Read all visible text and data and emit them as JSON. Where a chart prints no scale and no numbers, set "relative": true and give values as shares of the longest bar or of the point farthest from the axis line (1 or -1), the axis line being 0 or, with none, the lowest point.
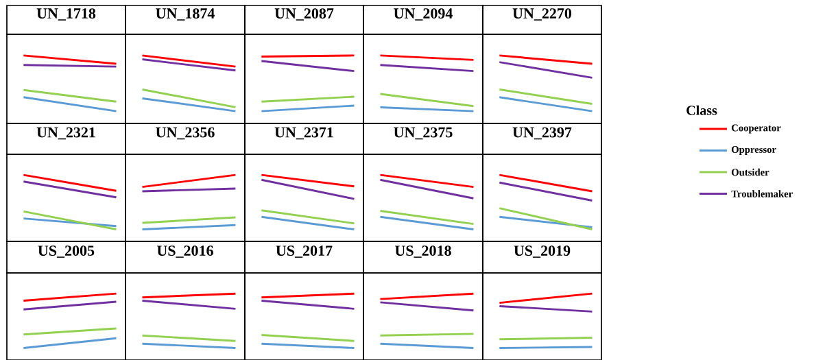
{
  "chart_data": [
    {
      "type": "line",
      "title": "UN_1718",
      "relative": true,
      "categories": [
        null,
        null
      ],
      "series": [
        {
          "color": "#ff0000",
          "values": [
            1,
            0.85
          ]
        },
        {
          "color": "#5b9bd5",
          "values": [
            0.25,
            0
          ]
        },
        {
          "color": "#92d050",
          "values": [
            0.38,
            0.17
          ]
        },
        {
          "color": "#7030a0",
          "values": [
            0.83,
            0.8
          ]
        }
      ]
    },
    {
      "type": "line",
      "title": "UN_1874",
      "relative": true,
      "categories": [
        null,
        null
      ],
      "series": [
        {
          "color": "#ff0000",
          "values": [
            1,
            0.8
          ]
        },
        {
          "color": "#5b9bd5",
          "values": [
            0.23,
            0
          ]
        },
        {
          "color": "#92d050",
          "values": [
            0.39,
            0.07
          ]
        },
        {
          "color": "#7030a0",
          "values": [
            0.93,
            0.73
          ]
        }
      ]
    },
    {
      "type": "line",
      "title": "UN_2087",
      "relative": true,
      "categories": [
        null,
        null
      ],
      "series": [
        {
          "color": "#ff0000",
          "values": [
            0.98,
            1
          ]
        },
        {
          "color": "#5b9bd5",
          "values": [
            0,
            0.1
          ]
        },
        {
          "color": "#92d050",
          "values": [
            0.17,
            0.26
          ]
        },
        {
          "color": "#7030a0",
          "values": [
            0.9,
            0.72
          ]
        }
      ]
    },
    {
      "type": "line",
      "title": "UN_2094",
      "relative": true,
      "categories": [
        null,
        null
      ],
      "series": [
        {
          "color": "#ff0000",
          "values": [
            1,
            0.92
          ]
        },
        {
          "color": "#5b9bd5",
          "values": [
            0.07,
            0
          ]
        },
        {
          "color": "#92d050",
          "values": [
            0.31,
            0.09
          ]
        },
        {
          "color": "#7030a0",
          "values": [
            0.83,
            0.72
          ]
        }
      ]
    },
    {
      "type": "line",
      "title": "UN_2270",
      "relative": true,
      "categories": [
        null,
        null
      ],
      "series": [
        {
          "color": "#ff0000",
          "values": [
            1,
            0.85
          ]
        },
        {
          "color": "#5b9bd5",
          "values": [
            0.25,
            0
          ]
        },
        {
          "color": "#92d050",
          "values": [
            0.39,
            0.13
          ]
        },
        {
          "color": "#7030a0",
          "values": [
            0.88,
            0.6
          ]
        }
      ]
    },
    {
      "type": "line",
      "title": "UN_2321",
      "relative": true,
      "categories": [
        null,
        null
      ],
      "series": [
        {
          "color": "#ff0000",
          "values": [
            1,
            0.71
          ]
        },
        {
          "color": "#5b9bd5",
          "values": [
            0.2,
            0.06
          ]
        },
        {
          "color": "#92d050",
          "values": [
            0.33,
            0
          ]
        },
        {
          "color": "#7030a0",
          "values": [
            0.88,
            0.59
          ]
        }
      ]
    },
    {
      "type": "line",
      "title": "UN_2356",
      "relative": true,
      "categories": [
        null,
        null
      ],
      "series": [
        {
          "color": "#ff0000",
          "values": [
            0.78,
            1
          ]
        },
        {
          "color": "#5b9bd5",
          "values": [
            0,
            0.08
          ]
        },
        {
          "color": "#92d050",
          "values": [
            0.12,
            0.22
          ]
        },
        {
          "color": "#7030a0",
          "values": [
            0.7,
            0.75
          ]
        }
      ]
    },
    {
      "type": "line",
      "title": "UN_2371",
      "relative": true,
      "categories": [
        null,
        null
      ],
      "series": [
        {
          "color": "#ff0000",
          "values": [
            1,
            0.79
          ]
        },
        {
          "color": "#5b9bd5",
          "values": [
            0.23,
            0
          ]
        },
        {
          "color": "#92d050",
          "values": [
            0.35,
            0.11
          ]
        },
        {
          "color": "#7030a0",
          "values": [
            0.91,
            0.56
          ]
        }
      ]
    },
    {
      "type": "line",
      "title": "UN_2375",
      "relative": true,
      "categories": [
        null,
        null
      ],
      "series": [
        {
          "color": "#ff0000",
          "values": [
            1,
            0.78
          ]
        },
        {
          "color": "#5b9bd5",
          "values": [
            0.23,
            0
          ]
        },
        {
          "color": "#92d050",
          "values": [
            0.34,
            0.1
          ]
        },
        {
          "color": "#7030a0",
          "values": [
            0.91,
            0.57
          ]
        }
      ]
    },
    {
      "type": "line",
      "title": "UN_2397",
      "relative": true,
      "categories": [
        null,
        null
      ],
      "legend": "right",
      "legend_title": "Class",
      "series": [
        {
          "name": "Cooperator",
          "color": "#ff0000",
          "values": [
            1,
            0.7
          ]
        },
        {
          "name": "Oppressor",
          "color": "#5b9bd5",
          "values": [
            0.23,
            0.04
          ]
        },
        {
          "name": "Outsider",
          "color": "#92d050",
          "values": [
            0.39,
            0
          ]
        },
        {
          "name": "Troublemaker",
          "color": "#7030a0",
          "values": [
            0.86,
            0.53
          ]
        }
      ]
    },
    {
      "type": "line",
      "title": "US_2005",
      "relative": true,
      "categories": [
        null,
        null
      ],
      "series": [
        {
          "color": "#ff0000",
          "values": [
            0.87,
            1
          ]
        },
        {
          "color": "#5b9bd5",
          "values": [
            0,
            0.18
          ]
        },
        {
          "color": "#92d050",
          "values": [
            0.25,
            0.36
          ]
        },
        {
          "color": "#7030a0",
          "values": [
            0.71,
            0.85
          ]
        }
      ]
    },
    {
      "type": "line",
      "title": "US_2016",
      "relative": true,
      "categories": [
        null,
        null
      ],
      "series": [
        {
          "color": "#ff0000",
          "values": [
            0.93,
            1
          ]
        },
        {
          "color": "#5b9bd5",
          "values": [
            0.08,
            0
          ]
        },
        {
          "color": "#92d050",
          "values": [
            0.23,
            0.13
          ]
        },
        {
          "color": "#7030a0",
          "values": [
            0.87,
            0.72
          ]
        }
      ]
    },
    {
      "type": "line",
      "title": "US_2017",
      "relative": true,
      "categories": [
        null,
        null
      ],
      "series": [
        {
          "color": "#ff0000",
          "values": [
            0.93,
            1
          ]
        },
        {
          "color": "#5b9bd5",
          "values": [
            0.08,
            0
          ]
        },
        {
          "color": "#92d050",
          "values": [
            0.24,
            0.13
          ]
        },
        {
          "color": "#7030a0",
          "values": [
            0.87,
            0.72
          ]
        }
      ]
    },
    {
      "type": "line",
      "title": "US_2018",
      "relative": true,
      "categories": [
        null,
        null
      ],
      "series": [
        {
          "color": "#ff0000",
          "values": [
            0.9,
            1
          ]
        },
        {
          "color": "#5b9bd5",
          "values": [
            0.08,
            0
          ]
        },
        {
          "color": "#92d050",
          "values": [
            0.23,
            0.26
          ]
        },
        {
          "color": "#7030a0",
          "values": [
            0.84,
            0.69
          ]
        }
      ]
    },
    {
      "type": "line",
      "title": "US_2019",
      "relative": true,
      "categories": [
        null,
        null
      ],
      "series": [
        {
          "color": "#ff0000",
          "values": [
            0.83,
            1
          ]
        },
        {
          "color": "#5b9bd5",
          "values": [
            0,
            0.02
          ]
        },
        {
          "color": "#92d050",
          "values": [
            0.16,
            0.19
          ]
        },
        {
          "color": "#7030a0",
          "values": [
            0.77,
            0.67
          ]
        }
      ]
    }
  ]
}
